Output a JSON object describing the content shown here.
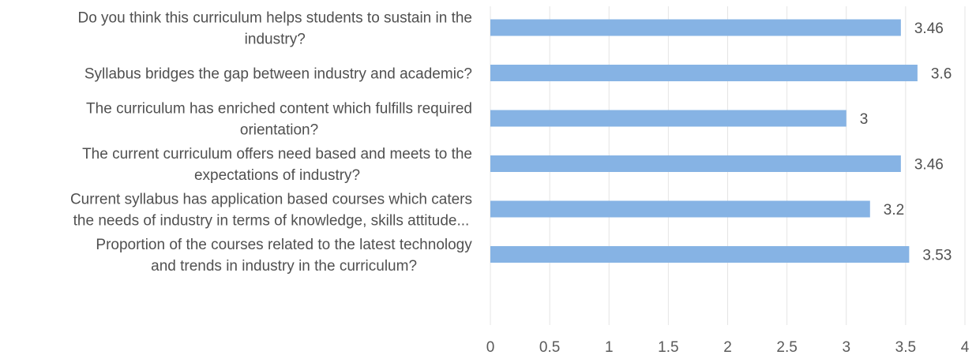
{
  "chart_data": {
    "type": "bar",
    "orientation": "horizontal",
    "title": "",
    "xlabel": "",
    "ylabel": "",
    "xlim": [
      0,
      4
    ],
    "x_ticks": [
      "0",
      "0.5",
      "1",
      "1.5",
      "2",
      "2.5",
      "3",
      "3.5",
      "4"
    ],
    "grid": true,
    "legend": "none",
    "bar_color": "#86b3e4",
    "categories": [
      {
        "lines": [
          "Do you think this curriculum helps students to sustain in the",
          "industry?"
        ],
        "value": 3.46,
        "value_label": "3.46"
      },
      {
        "lines": [
          "Syllabus bridges the gap between industry and academic?"
        ],
        "value": 3.6,
        "value_label": "3.6"
      },
      {
        "lines": [
          "The curriculum has enriched content which fulfills required",
          "orientation?"
        ],
        "value": 3,
        "value_label": "3"
      },
      {
        "lines": [
          "The current curriculum offers need based and meets to the",
          "expectations of industry?"
        ],
        "value": 3.46,
        "value_label": "3.46"
      },
      {
        "lines": [
          "Current syllabus has application based courses which caters",
          "the needs of industry in terms of knowledge, skills attitude..."
        ],
        "value": 3.2,
        "value_label": "3.2"
      },
      {
        "lines": [
          "Proportion of the courses related to the latest technology",
          "and trends in industry in the curriculum?"
        ],
        "value": 3.53,
        "value_label": "3.53"
      }
    ]
  }
}
